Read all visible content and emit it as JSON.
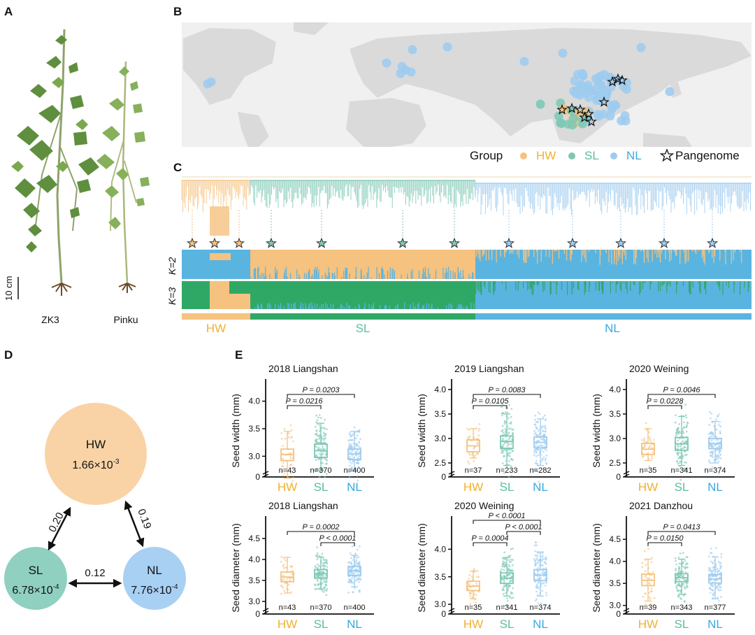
{
  "panel_labels": {
    "a": "A",
    "b": "B",
    "c": "C",
    "d": "D",
    "e": "E"
  },
  "panel_a": {
    "scale_label": "10 cm",
    "plants": [
      "ZK3",
      "Pinku"
    ]
  },
  "panel_b": {
    "legend": {
      "group_label": "Group",
      "hw": "HW",
      "sl": "SL",
      "nl": "NL",
      "pangenome": "Pangenome"
    }
  },
  "panel_c": {
    "k2": "K=2",
    "k3": "K=3",
    "groups": [
      "HW",
      "SL",
      "NL"
    ]
  },
  "panel_d": {
    "hw": {
      "name": "HW",
      "value": "1.66×10",
      "exp": "-3"
    },
    "sl": {
      "name": "SL",
      "value": "6.78×10",
      "exp": "-4"
    },
    "nl": {
      "name": "NL",
      "value": "7.76×10",
      "exp": "-4"
    },
    "fst_hw_sl": "0.20",
    "fst_hw_nl": "0.19",
    "fst_sl_nl": "0.12"
  },
  "colors": {
    "HW": "#f5c27f",
    "SL": "#7ec8b5",
    "NL": "#9ecbef",
    "HW_text": "#f0b030",
    "SL_text": "#5bbf98",
    "NL_text": "#3aa8df"
  },
  "chart_data": [
    {
      "type": "box",
      "title": "2018 Liangshan",
      "ylabel": "Seed width (mm)",
      "ylim": [
        2.7,
        4.3
      ],
      "ticks": [
        "0",
        "3.0",
        "3.5",
        "4.0"
      ],
      "categories": [
        "HW",
        "SL",
        "NL"
      ],
      "n": [
        "n=43",
        "n=370",
        "n=400"
      ],
      "boxes": [
        {
          "q1": 2.92,
          "med": 3.03,
          "q3": 3.13,
          "wlo": 2.6,
          "whi": 3.45
        },
        {
          "q1": 2.98,
          "med": 3.1,
          "q3": 3.22,
          "wlo": 2.75,
          "whi": 3.6
        },
        {
          "q1": 2.94,
          "med": 3.04,
          "q3": 3.13,
          "wlo": 2.75,
          "whi": 3.45
        }
      ],
      "pvals": [
        {
          "label": "P = 0.0216",
          "from": 0,
          "to": 1
        },
        {
          "label": "P = 0.0203",
          "from": 0,
          "to": 2
        }
      ]
    },
    {
      "type": "box",
      "title": "2019 Liangshan",
      "ylabel": "Seed width (mm)",
      "ylim": [
        2.3,
        4.1
      ],
      "ticks": [
        "0",
        "2.5",
        "3.0",
        "3.5",
        "4.0"
      ],
      "categories": [
        "HW",
        "SL",
        "NL"
      ],
      "n": [
        "n=37",
        "n=233",
        "n=282"
      ],
      "boxes": [
        {
          "q1": 2.73,
          "med": 2.85,
          "q3": 2.97,
          "wlo": 2.6,
          "whi": 3.2
        },
        {
          "q1": 2.8,
          "med": 2.94,
          "q3": 3.05,
          "wlo": 2.45,
          "whi": 3.5
        },
        {
          "q1": 2.81,
          "med": 2.92,
          "q3": 3.03,
          "wlo": 2.45,
          "whi": 3.4
        }
      ],
      "pvals": [
        {
          "label": "P = 0.0105",
          "from": 0,
          "to": 1
        },
        {
          "label": "P = 0.0083",
          "from": 0,
          "to": 2
        }
      ]
    },
    {
      "type": "box",
      "title": "2020 Weining",
      "ylabel": "Seed width (mm)",
      "ylim": [
        2.3,
        4.1
      ],
      "ticks": [
        "0",
        "2.5",
        "3.0",
        "3.5",
        "4.0"
      ],
      "categories": [
        "HW",
        "SL",
        "NL"
      ],
      "n": [
        "n=35",
        "n=341",
        "n=374"
      ],
      "boxes": [
        {
          "q1": 2.67,
          "med": 2.78,
          "q3": 2.9,
          "wlo": 2.55,
          "whi": 3.2
        },
        {
          "q1": 2.76,
          "med": 2.89,
          "q3": 3.02,
          "wlo": 2.45,
          "whi": 3.45
        },
        {
          "q1": 2.79,
          "med": 2.89,
          "q3": 3.0,
          "wlo": 2.5,
          "whi": 3.35
        }
      ],
      "pvals": [
        {
          "label": "P = 0.0228",
          "from": 0,
          "to": 1
        },
        {
          "label": "P = 0.0046",
          "from": 0,
          "to": 2
        }
      ]
    },
    {
      "type": "box",
      "title": "2018 Liangshan",
      "ylabel": "Seed diameter (mm)",
      "ylim": [
        2.8,
        4.9
      ],
      "ticks": [
        "0",
        "3.0",
        "3.5",
        "4.0",
        "4.5"
      ],
      "categories": [
        "HW",
        "SL",
        "NL"
      ],
      "n": [
        "n=43",
        "n=370",
        "n=400"
      ],
      "boxes": [
        {
          "q1": 3.47,
          "med": 3.58,
          "q3": 3.7,
          "wlo": 3.2,
          "whi": 4.05
        },
        {
          "q1": 3.56,
          "med": 3.66,
          "q3": 3.76,
          "wlo": 3.3,
          "whi": 4.05
        },
        {
          "q1": 3.62,
          "med": 3.73,
          "q3": 3.83,
          "wlo": 3.35,
          "whi": 4.1
        }
      ],
      "pvals": [
        {
          "label": "P < 0.0001",
          "from": 1,
          "to": 2
        },
        {
          "label": "P = 0.0002",
          "from": 0,
          "to": 2
        }
      ]
    },
    {
      "type": "box",
      "title": "2020 Weining",
      "ylabel": "Seed diameter (mm)",
      "ylim": [
        2.9,
        4.5
      ],
      "ticks": [
        "0",
        "3.0",
        "3.5",
        "4.0"
      ],
      "categories": [
        "HW",
        "SL",
        "NL"
      ],
      "n": [
        "n=35",
        "n=341",
        "n=374"
      ],
      "boxes": [
        {
          "q1": 3.25,
          "med": 3.33,
          "q3": 3.42,
          "wlo": 3.1,
          "whi": 3.6
        },
        {
          "q1": 3.38,
          "med": 3.47,
          "q3": 3.57,
          "wlo": 3.15,
          "whi": 3.85
        },
        {
          "q1": 3.43,
          "med": 3.53,
          "q3": 3.63,
          "wlo": 3.15,
          "whi": 3.95
        }
      ],
      "pvals": [
        {
          "label": "P = 0.0004",
          "from": 0,
          "to": 1
        },
        {
          "label": "P < 0.0001",
          "from": 1,
          "to": 2
        },
        {
          "label": "P < 0.0001",
          "from": 0,
          "to": 2
        }
      ]
    },
    {
      "type": "box",
      "title": "2021 Danzhou",
      "ylabel": "Seed diameter (mm)",
      "ylim": [
        2.9,
        4.9
      ],
      "ticks": [
        "0",
        "3.0",
        "3.5",
        "4.0",
        "4.5"
      ],
      "categories": [
        "HW",
        "SL",
        "NL"
      ],
      "n": [
        "n=39",
        "n=343",
        "n=377"
      ],
      "boxes": [
        {
          "q1": 3.45,
          "med": 3.57,
          "q3": 3.71,
          "wlo": 3.1,
          "whi": 4.05
        },
        {
          "q1": 3.54,
          "med": 3.63,
          "q3": 3.72,
          "wlo": 3.25,
          "whi": 4.05
        },
        {
          "q1": 3.51,
          "med": 3.6,
          "q3": 3.7,
          "wlo": 3.15,
          "whi": 4.1
        }
      ],
      "pvals": [
        {
          "label": "P = 0.0150",
          "from": 0,
          "to": 1
        },
        {
          "label": "P = 0.0413",
          "from": 0,
          "to": 2
        }
      ]
    }
  ]
}
